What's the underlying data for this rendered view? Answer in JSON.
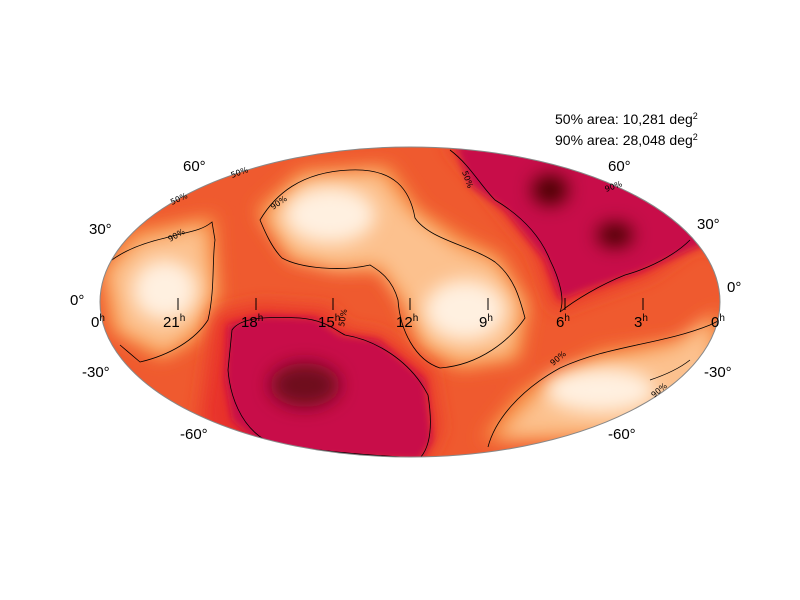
{
  "legend": {
    "area50": {
      "text": "50% area: 10,281 deg",
      "sup": "2"
    },
    "area90": {
      "text": "90% area: 28,048 deg",
      "sup": "2"
    }
  },
  "graticule": {
    "lat_labels": [
      "60°",
      "30°",
      "0°",
      "-30°",
      "-60°"
    ],
    "lat_labels_right": [
      "60°",
      "30°",
      "0°",
      "-30°",
      "-60°"
    ],
    "ra_labels": [
      {
        "num": "0",
        "unit": "h"
      },
      {
        "num": "21",
        "unit": "h"
      },
      {
        "num": "18",
        "unit": "h"
      },
      {
        "num": "15",
        "unit": "h"
      },
      {
        "num": "12",
        "unit": "h"
      },
      {
        "num": "9",
        "unit": "h"
      },
      {
        "num": "6",
        "unit": "h"
      },
      {
        "num": "3",
        "unit": "h"
      },
      {
        "num": "0",
        "unit": "h"
      }
    ]
  },
  "contour_labels": {
    "c50": "50%",
    "c90": "90%"
  },
  "colors": {
    "dark": "#4a0000",
    "crimson": "#c8104a",
    "red": "#e8332c",
    "orange": "#f47a35",
    "peach": "#fcc18e",
    "cream": "#fff0e0"
  }
}
